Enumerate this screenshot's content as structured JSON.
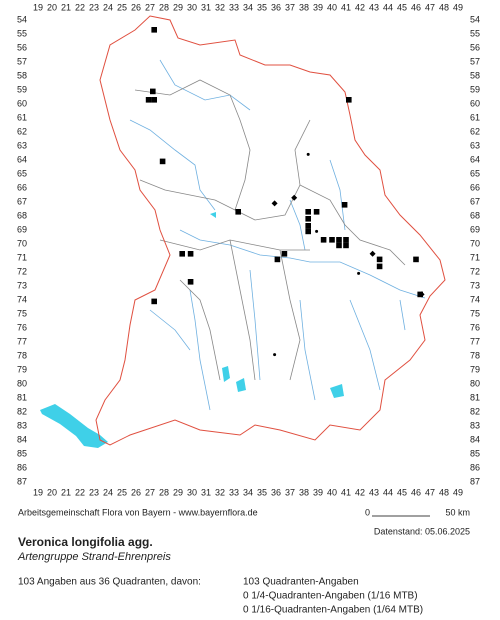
{
  "map": {
    "columns": [
      19,
      20,
      21,
      22,
      23,
      24,
      25,
      26,
      27,
      28,
      29,
      30,
      31,
      32,
      33,
      34,
      35,
      36,
      37,
      38,
      39,
      40,
      41,
      42,
      43,
      44,
      45,
      46,
      47,
      48,
      49
    ],
    "rows": [
      54,
      55,
      56,
      57,
      58,
      59,
      60,
      61,
      62,
      63,
      64,
      65,
      66,
      67,
      68,
      69,
      70,
      71,
      72,
      73,
      74,
      75,
      76,
      77,
      78,
      79,
      80,
      81,
      82,
      83,
      84,
      85,
      86,
      87
    ],
    "markers": [
      {
        "kind": "square",
        "x": 27.3,
        "y": 54.7
      },
      {
        "kind": "square",
        "x": 27.2,
        "y": 59.1
      },
      {
        "kind": "square",
        "x": 26.9,
        "y": 59.7
      },
      {
        "kind": "square",
        "x": 27.3,
        "y": 59.7
      },
      {
        "kind": "square",
        "x": 41.2,
        "y": 59.7
      },
      {
        "kind": "square",
        "x": 27.9,
        "y": 64.1
      },
      {
        "kind": "dot",
        "x": 38.3,
        "y": 63.6
      },
      {
        "kind": "diamond",
        "x": 37.3,
        "y": 66.7
      },
      {
        "kind": "diamond",
        "x": 35.9,
        "y": 67.1
      },
      {
        "kind": "square",
        "x": 33.3,
        "y": 67.7
      },
      {
        "kind": "square",
        "x": 40.9,
        "y": 67.2
      },
      {
        "kind": "square",
        "x": 38.3,
        "y": 67.7
      },
      {
        "kind": "square",
        "x": 38.9,
        "y": 67.7
      },
      {
        "kind": "square",
        "x": 38.3,
        "y": 68.2
      },
      {
        "kind": "square",
        "x": 38.3,
        "y": 68.7
      },
      {
        "kind": "square",
        "x": 38.3,
        "y": 69.1
      },
      {
        "kind": "dot",
        "x": 38.9,
        "y": 69.1
      },
      {
        "kind": "square",
        "x": 39.4,
        "y": 69.7
      },
      {
        "kind": "square",
        "x": 40.0,
        "y": 69.7
      },
      {
        "kind": "square",
        "x": 40.5,
        "y": 69.7
      },
      {
        "kind": "square",
        "x": 41.0,
        "y": 69.7
      },
      {
        "kind": "square",
        "x": 40.5,
        "y": 70.1
      },
      {
        "kind": "square",
        "x": 41.0,
        "y": 70.1
      },
      {
        "kind": "square",
        "x": 29.3,
        "y": 70.7
      },
      {
        "kind": "square",
        "x": 29.9,
        "y": 70.7
      },
      {
        "kind": "square",
        "x": 36.6,
        "y": 70.7
      },
      {
        "kind": "square",
        "x": 36.1,
        "y": 71.1
      },
      {
        "kind": "diamond",
        "x": 42.9,
        "y": 70.7
      },
      {
        "kind": "square",
        "x": 43.4,
        "y": 71.1
      },
      {
        "kind": "square",
        "x": 43.4,
        "y": 71.6
      },
      {
        "kind": "square",
        "x": 46.0,
        "y": 71.1
      },
      {
        "kind": "dot",
        "x": 41.9,
        "y": 72.1
      },
      {
        "kind": "square",
        "x": 29.9,
        "y": 72.7
      },
      {
        "kind": "square",
        "x": 46.3,
        "y": 73.6
      },
      {
        "kind": "diamond",
        "x": 46.4,
        "y": 73.6
      },
      {
        "kind": "square",
        "x": 27.3,
        "y": 74.1
      },
      {
        "kind": "dot",
        "x": 35.9,
        "y": 77.9
      }
    ]
  },
  "footer": {
    "credit": "Arbeitsgemeinschaft Flora von Bayern - www.bayernflora.de",
    "scale_start": "0",
    "scale_end": "50 km",
    "date": "Datenstand: 05.06.2025",
    "species": "Veronica longifolia agg.",
    "group": "Artengruppe Strand-Ehrenpreis",
    "summary": "103 Angaben aus 36 Quadranten, davon:",
    "counts": [
      "103 Quadranten-Angaben",
      "0 1/4-Quadranten-Angaben (1/16 MTB)",
      "0 1/16-Quadranten-Angaben (1/64 MTB)"
    ]
  }
}
